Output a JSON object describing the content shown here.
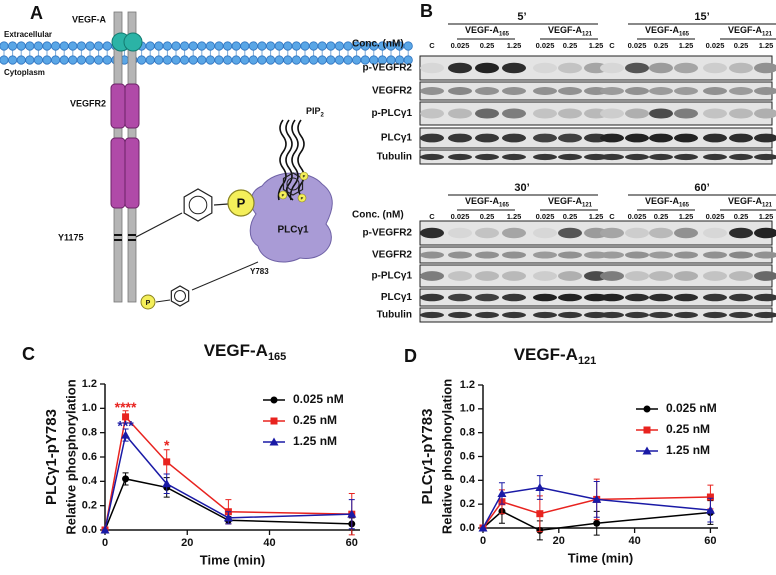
{
  "diagram": {
    "panel": "A",
    "ligand": "VEGF-A",
    "outside": "Extracellular",
    "inside": "Cytoplasm",
    "receptor": "VEGFR2",
    "lipid": "PIP",
    "lipid_subscript": "2",
    "site1": "Y1175",
    "phospho": "P",
    "enzyme": "PLCγ1",
    "site2": "Y783"
  },
  "blots": {
    "panel": "B",
    "times": [
      "5’",
      "15’",
      "30’",
      "60’"
    ],
    "conc_label": "Conc. (nM)",
    "control": "C",
    "groups": [
      {
        "name": "VEGF-A",
        "subscript": "165"
      },
      {
        "name": "VEGF-A",
        "subscript": "121"
      }
    ],
    "concentrations": [
      "0.025",
      "0.25",
      "1.25"
    ],
    "rows": [
      "p-VEGFR2",
      "VEGFR2",
      "p-PLCγ1",
      "PLCγ1",
      "Tubulin"
    ]
  },
  "chart_data": [
    {
      "type": "line",
      "panel": "C",
      "title": "VEGF-A",
      "title_subscript": "165",
      "y_label_top": "PLCγ1-pY783",
      "y_label": "Relative phosphorylation",
      "x_label": "Time (min)",
      "x": [
        0,
        5,
        15,
        30,
        60
      ],
      "xlim": [
        0,
        62
      ],
      "xticks": [
        0,
        20,
        40,
        60
      ],
      "ylim": [
        0,
        1.2
      ],
      "yticks": [
        {
          "value": 0,
          "label": "0.0"
        },
        0.2,
        0.4,
        0.6,
        0.8,
        {
          "value": 1,
          "label": "1.0"
        },
        1.2
      ],
      "series": [
        {
          "name": "0.025 nM",
          "color": "#000000",
          "marker": "circle",
          "values": [
            0,
            0.42,
            0.35,
            0.08,
            0.05
          ],
          "errors": [
            0,
            0.05,
            0.08,
            0.03,
            0.05
          ]
        },
        {
          "name": "0.25 nM",
          "color": "#e8231f",
          "marker": "square",
          "values": [
            0,
            0.93,
            0.56,
            0.15,
            0.13
          ],
          "errors": [
            0,
            0.05,
            0.1,
            0.1,
            0.17
          ]
        },
        {
          "name": "1.25 nM",
          "color": "#1a1aa6",
          "marker": "triangle",
          "values": [
            0,
            0.78,
            0.38,
            0.1,
            0.13
          ],
          "errors": [
            0,
            0.05,
            0.08,
            0.05,
            0.12
          ]
        }
      ],
      "annotations": [
        {
          "text": "****",
          "color": "#e8231f"
        },
        {
          "text": "***",
          "color": "#1a1aa6"
        },
        {
          "text": "*",
          "color": "#e8231f"
        }
      ]
    },
    {
      "type": "line",
      "panel": "D",
      "title": "VEGF-A",
      "title_subscript": "121",
      "y_label_top": "PLCγ1-pY783",
      "y_label": "Relative phosphorylation",
      "x_label": "Time (min)",
      "x": [
        0,
        5,
        15,
        30,
        60
      ],
      "xlim": [
        0,
        62
      ],
      "xticks": [
        0,
        20,
        40,
        60
      ],
      "ylim": [
        0,
        1.2
      ],
      "yticks": [
        {
          "value": 0,
          "label": "0.0"
        },
        0.2,
        0.4,
        0.6,
        0.8,
        {
          "value": 1,
          "label": "1.0"
        },
        1.2
      ],
      "series": [
        {
          "name": "0.025 nM",
          "color": "#000000",
          "marker": "circle",
          "values": [
            0,
            0.14,
            -0.02,
            0.04,
            0.13
          ],
          "errors": [
            0,
            0.1,
            0.08,
            0.1,
            0.1
          ]
        },
        {
          "name": "0.25 nM",
          "color": "#e8231f",
          "marker": "square",
          "values": [
            0,
            0.22,
            0.12,
            0.24,
            0.26
          ],
          "errors": [
            0,
            0.1,
            0.15,
            0.17,
            0.1
          ]
        },
        {
          "name": "1.25 nM",
          "color": "#1a1aa6",
          "marker": "triangle",
          "values": [
            0,
            0.29,
            0.34,
            0.24,
            0.15
          ],
          "errors": [
            0,
            0.09,
            0.1,
            0.15,
            0.1
          ]
        }
      ],
      "annotations": []
    }
  ]
}
